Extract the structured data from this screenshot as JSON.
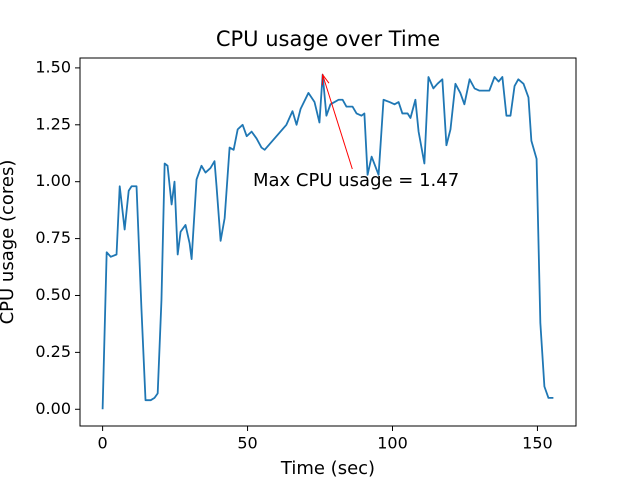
{
  "chart_data": {
    "type": "line",
    "title": "CPU usage over Time",
    "xlabel": "Time (sec)",
    "ylabel": "CPU usage (cores)",
    "xlim": [
      -7.8,
      163.3
    ],
    "ylim": [
      -0.0735,
      1.5435
    ],
    "xticks": [
      0,
      50,
      100,
      150
    ],
    "yticks": [
      {
        "value": 0,
        "label": "0.00"
      },
      {
        "value": 0.25,
        "label": "0.25"
      },
      {
        "value": 0.5,
        "label": "0.50"
      },
      {
        "value": 0.75,
        "label": "0.75"
      },
      {
        "value": 1,
        "label": "1.00"
      },
      {
        "value": 1.25,
        "label": "1.25"
      },
      {
        "value": 1.5,
        "label": "1.50"
      }
    ],
    "grid": false,
    "series": [
      {
        "color": "#1f77b4",
        "x": [
          0,
          1.4,
          2.8,
          4.8,
          5.9,
          7.6,
          9.0,
          10.0,
          11.7,
          13.4,
          14.8,
          16.6,
          17.9,
          19.0,
          20.3,
          21.4,
          22.4,
          23.8,
          24.8,
          25.9,
          26.9,
          28.6,
          30.0,
          30.7,
          32.4,
          34.1,
          35.5,
          37.2,
          38.6,
          39.3,
          40.7,
          42.1,
          43.8,
          45.2,
          46.6,
          48.3,
          49.7,
          51.4,
          53.1,
          54.8,
          55.9,
          63.4,
          65.5,
          66.9,
          68.3,
          71.0,
          73.1,
          74.8,
          75.9,
          77.2,
          78.6,
          80.0,
          81.4,
          82.8,
          84.1,
          86.2,
          87.6,
          89.3,
          90.3,
          91.4,
          92.8,
          95.2,
          96.9,
          99.0,
          100.7,
          102.1,
          103.4,
          105.2,
          106.2,
          107.9,
          109.0,
          111.0,
          112.4,
          114.1,
          115.5,
          117.2,
          118.6,
          120.0,
          121.7,
          123.4,
          124.8,
          126.6,
          128.3,
          130.0,
          132.1,
          133.4,
          135.2,
          136.6,
          137.9,
          139.3,
          140.7,
          142.1,
          143.4,
          145.2,
          146.9,
          147.9,
          149.7,
          151.0,
          152.4,
          153.8,
          155.5
        ],
        "values": [
          0,
          0.69,
          0.67,
          0.68,
          0.98,
          0.79,
          0.96,
          0.98,
          0.98,
          0.44,
          0.04,
          0.04,
          0.05,
          0.07,
          0.48,
          1.08,
          1.07,
          0.9,
          1.0,
          0.68,
          0.78,
          0.81,
          0.73,
          0.66,
          1.01,
          1.07,
          1.04,
          1.06,
          1.09,
          0.98,
          0.74,
          0.84,
          1.15,
          1.14,
          1.23,
          1.25,
          1.2,
          1.22,
          1.19,
          1.15,
          1.14,
          1.25,
          1.31,
          1.25,
          1.32,
          1.39,
          1.35,
          1.26,
          1.47,
          1.29,
          1.34,
          1.35,
          1.36,
          1.36,
          1.33,
          1.33,
          1.3,
          1.29,
          1.3,
          1.03,
          1.11,
          1.03,
          1.36,
          1.35,
          1.34,
          1.35,
          1.3,
          1.3,
          1.28,
          1.36,
          1.22,
          1.08,
          1.46,
          1.41,
          1.43,
          1.45,
          1.16,
          1.23,
          1.43,
          1.39,
          1.34,
          1.45,
          1.41,
          1.4,
          1.4,
          1.4,
          1.46,
          1.44,
          1.46,
          1.29,
          1.29,
          1.42,
          1.45,
          1.43,
          1.37,
          1.18,
          1.1,
          0.38,
          0.1,
          0.05,
          0.05
        ]
      }
    ],
    "annotation": {
      "text": "Max CPU usage = 1.47",
      "x": 75.9,
      "y": 1.47,
      "color": "#ff0000"
    }
  }
}
